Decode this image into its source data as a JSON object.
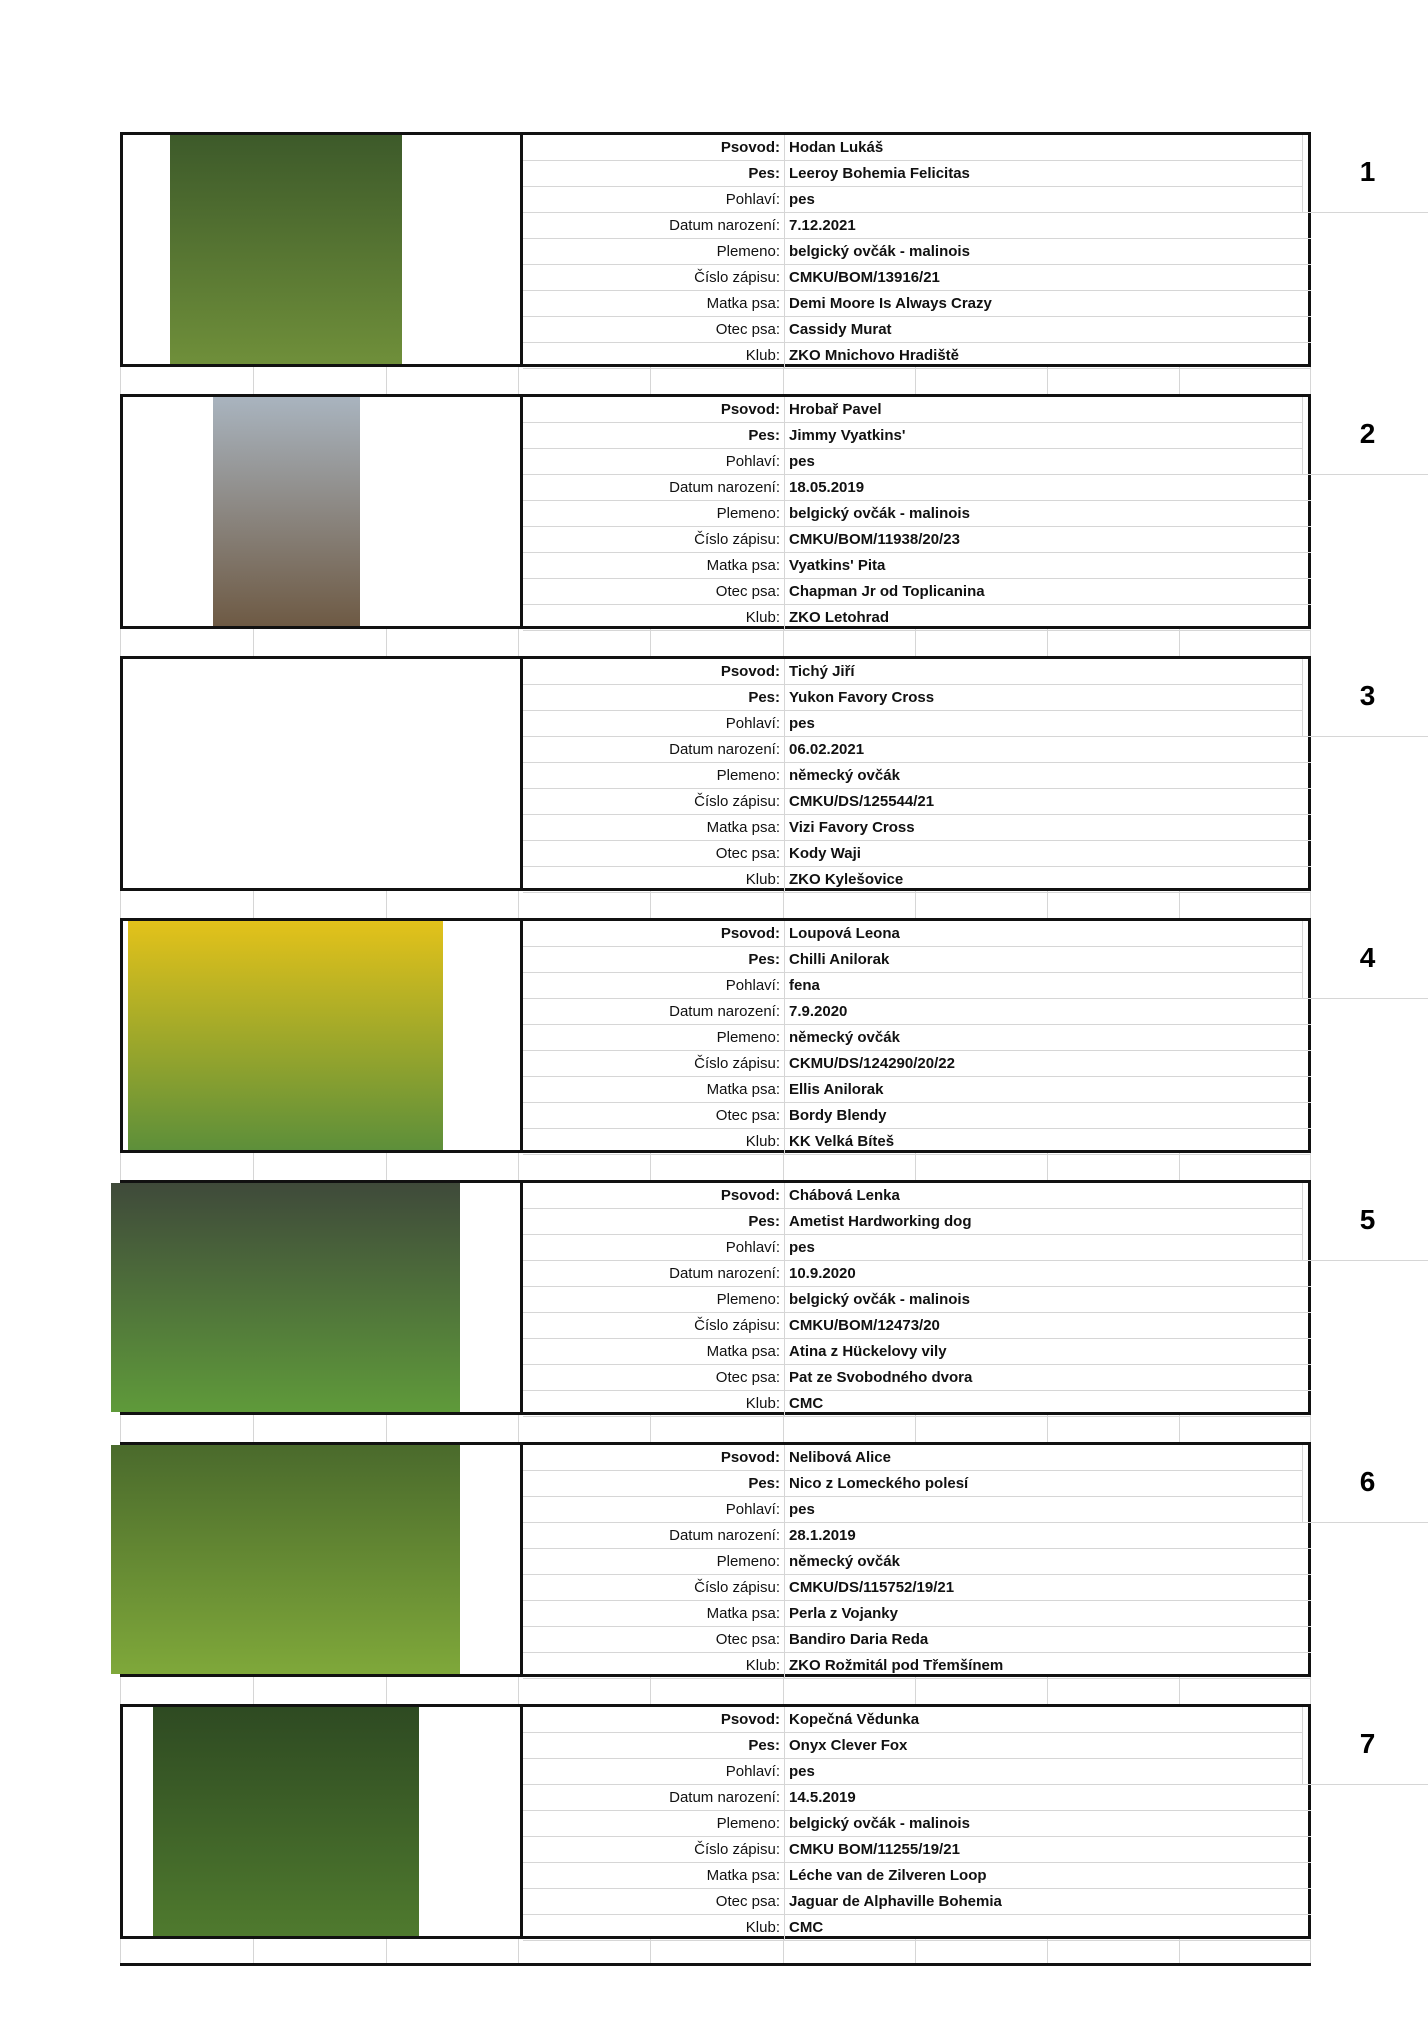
{
  "labels": {
    "handler": "Psovod:",
    "dog": "Pes:",
    "sex": "Pohlaví:",
    "birth_date": "Datum narození:",
    "breed": "Plemeno:",
    "reg_no": "Číslo zápisu:",
    "dam": "Matka psa:",
    "sire": "Otec psa:",
    "club": "Klub:"
  },
  "entries": [
    {
      "number": "1",
      "photo": true,
      "photo_colors": [
        "#3d5a2a",
        "#6f8f3a"
      ],
      "handler": "Hodan Lukáš",
      "dog": "Leeroy Bohemia Felicitas",
      "sex": "pes",
      "birth_date": "7.12.2021",
      "breed": "belgický ovčák - malinois",
      "reg_no": "CMKU/BOM/13916/21",
      "dam": "Demi Moore Is Always Crazy",
      "sire": "Cassidy Murat",
      "club": "ZKO Mnichovo Hradiště"
    },
    {
      "number": "2",
      "photo": true,
      "photo_colors": [
        "#a9b4bf",
        "#6e5a44"
      ],
      "handler": "Hrobař Pavel",
      "dog": "Jimmy Vyatkins'",
      "sex": "pes",
      "birth_date": "18.05.2019",
      "breed": "belgický ovčák - malinois",
      "reg_no": "CMKU/BOM/11938/20/23",
      "dam": "Vyatkins' Pita",
      "sire": "Chapman Jr od Toplicanina",
      "club": "ZKO Letohrad"
    },
    {
      "number": "3",
      "photo": false,
      "handler": "Tichý Jiří",
      "dog": "Yukon Favory Cross",
      "sex": "pes",
      "birth_date": "06.02.2021",
      "breed": "německý ovčák",
      "reg_no": "CMKU/DS/125544/21",
      "dam": "Vizi Favory Cross",
      "sire": "Kody Waji",
      "club": "ZKO Kylešovice"
    },
    {
      "number": "4",
      "photo": true,
      "photo_colors": [
        "#e3c21a",
        "#5d8f3a"
      ],
      "handler": "Loupová Leona",
      "dog": "Chilli Anilorak",
      "sex": "fena",
      "birth_date": "7.9.2020",
      "breed": "německý ovčák",
      "reg_no": "CKMU/DS/124290/20/22",
      "dam": "Ellis Anilorak",
      "sire": "Bordy Blendy",
      "club": "KK Velká Bíteš"
    },
    {
      "number": "5",
      "photo": true,
      "photo_colors": [
        "#3f4a3a",
        "#5f9a3a"
      ],
      "handler": "Chábová Lenka",
      "dog": "Ametist Hardworking dog",
      "sex": "pes",
      "birth_date": "10.9.2020",
      "breed": "belgický ovčák - malinois",
      "reg_no": "CMKU/BOM/12473/20",
      "dam": "Atina z Hückelovy vily",
      "sire": "Pat ze Svobodného dvora",
      "club": "CMC"
    },
    {
      "number": "6",
      "photo": true,
      "photo_colors": [
        "#4a6a2c",
        "#7fa83a"
      ],
      "handler": "Nelibová Alice",
      "dog": "Nico z Lomeckého polesí",
      "sex": "pes",
      "birth_date": "28.1.2019",
      "breed": "německý ovčák",
      "reg_no": "CMKU/DS/115752/19/21",
      "dam": "Perla z Vojanky",
      "sire": "Bandiro Daria Reda",
      "club": "ZKO Rožmitál pod Třemšínem"
    },
    {
      "number": "7",
      "photo": true,
      "photo_colors": [
        "#2e4a22",
        "#4f7a2e"
      ],
      "handler": "Kopečná Vědunka",
      "dog": "Onyx Clever Fox",
      "sex": "pes",
      "birth_date": "14.5.2019",
      "breed": "belgický ovčák - malinois",
      "reg_no": "CMKU BOM/11255/19/21",
      "dam": "Léche van de Zilveren Loop",
      "sire": "Jaguar de Alphaville Bohemia",
      "club": "CMC"
    }
  ]
}
